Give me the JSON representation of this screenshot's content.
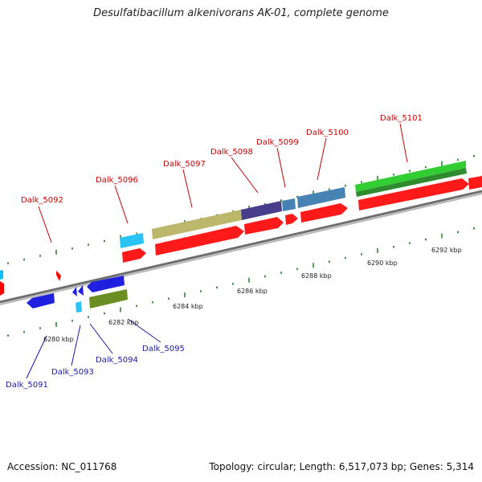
{
  "header": {
    "title": "Desulfatibacillum alkenivorans AK-01, complete genome"
  },
  "footer": {
    "accession": "Accession: NC_011768",
    "summary": "Topology: circular; Length: 6,517,073 bp; Genes: 5,314"
  },
  "colors": {
    "backbone": "#8c8c8c",
    "tick": "#2e8b2e",
    "forward_label": "#cc0000",
    "reverse_label": "#1a1aa6"
  },
  "scale_ticks": [
    "6280 kbp",
    "6282 kbp",
    "6284 kbp",
    "6286 kbp",
    "6288 kbp",
    "6290 kbp",
    "6292 kbp"
  ],
  "forward_genes": [
    {
      "label": "Dalk_5092"
    },
    {
      "label": "Dalk_5096"
    },
    {
      "label": "Dalk_5097"
    },
    {
      "label": "Dalk_5098"
    },
    {
      "label": "Dalk_5099"
    },
    {
      "label": "Dalk_5100"
    },
    {
      "label": "Dalk_5101"
    }
  ],
  "reverse_genes": [
    {
      "label": "Dalk_5091"
    },
    {
      "label": "Dalk_5093"
    },
    {
      "label": "Dalk_5094"
    },
    {
      "label": "Dalk_5095"
    }
  ]
}
